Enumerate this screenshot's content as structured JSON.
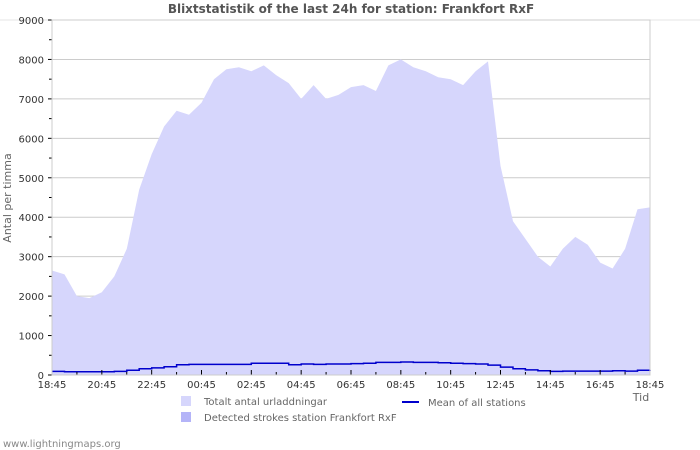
{
  "chart_data": {
    "type": "area",
    "title": "Blixtstatistik of the last 24h for station: Frankfort RxF",
    "xlabel": "Tid",
    "ylabel": "Antal per timma",
    "ylim": [
      0,
      9000
    ],
    "yticks": [
      0,
      1000,
      2000,
      3000,
      4000,
      5000,
      6000,
      7000,
      8000,
      9000
    ],
    "xtick_labels": [
      "18:45",
      "20:45",
      "22:45",
      "00:45",
      "02:45",
      "04:45",
      "06:45",
      "08:45",
      "10:45",
      "12:45",
      "14:45",
      "16:45",
      "18:45"
    ],
    "grid": true,
    "legend_position": "bottom",
    "x": [
      "18:45",
      "19:15",
      "19:45",
      "20:15",
      "20:45",
      "21:15",
      "21:45",
      "22:15",
      "22:45",
      "23:15",
      "23:45",
      "00:15",
      "00:45",
      "01:15",
      "01:45",
      "02:15",
      "02:45",
      "03:15",
      "03:45",
      "04:15",
      "04:45",
      "05:15",
      "05:45",
      "06:15",
      "06:45",
      "07:15",
      "07:45",
      "08:15",
      "08:45",
      "09:15",
      "09:45",
      "10:15",
      "10:45",
      "11:15",
      "11:45",
      "12:15",
      "12:45",
      "13:15",
      "13:45",
      "14:15",
      "14:45",
      "15:15",
      "15:45",
      "16:15",
      "16:45",
      "17:15",
      "17:45",
      "18:15",
      "18:45"
    ],
    "series": [
      {
        "name": "Totalt antal urladdningar",
        "color": "#d6d6fc",
        "values": [
          2650,
          2550,
          2000,
          1950,
          2100,
          2500,
          3200,
          4700,
          5600,
          6300,
          6700,
          6600,
          6900,
          7500,
          7750,
          7800,
          7700,
          7850,
          7600,
          7400,
          7000,
          7350,
          7000,
          7100,
          7300,
          7350,
          7200,
          7850,
          8000,
          7800,
          7700,
          7550,
          7500,
          7350,
          7700,
          7950,
          5300,
          3900,
          3450,
          3000,
          2750,
          3200,
          3500,
          3300,
          2850,
          2700,
          3200,
          4200,
          4250
        ]
      },
      {
        "name": "Detected strokes station Frankfort RxF",
        "color": "#b4b4f8",
        "values": [
          0,
          0,
          0,
          0,
          0,
          0,
          0,
          0,
          0,
          0,
          0,
          0,
          0,
          0,
          0,
          0,
          0,
          0,
          0,
          0,
          0,
          0,
          0,
          0,
          0,
          0,
          0,
          0,
          0,
          0,
          0,
          0,
          0,
          0,
          0,
          0,
          0,
          0,
          0,
          0,
          0,
          0,
          0,
          0,
          0,
          0,
          0,
          0,
          0
        ]
      },
      {
        "name": "Mean of all stations",
        "color": "#0000cc",
        "values": [
          90,
          80,
          80,
          80,
          80,
          90,
          120,
          160,
          180,
          210,
          260,
          270,
          270,
          270,
          270,
          270,
          300,
          300,
          300,
          260,
          280,
          270,
          280,
          280,
          290,
          300,
          320,
          320,
          330,
          320,
          320,
          310,
          300,
          290,
          280,
          250,
          200,
          160,
          130,
          110,
          90,
          100,
          100,
          100,
          100,
          110,
          100,
          120,
          130
        ]
      }
    ]
  },
  "legend": {
    "items": [
      {
        "label": "Totalt antal urladdningar",
        "color": "#d6d6fc",
        "kind": "box"
      },
      {
        "label": "Detected strokes station Frankfort RxF",
        "color": "#b4b4f8",
        "kind": "box"
      },
      {
        "label": "Mean of all stations",
        "color": "#0000cc",
        "kind": "line"
      }
    ]
  },
  "footer": {
    "credit": "www.lightningmaps.org"
  }
}
